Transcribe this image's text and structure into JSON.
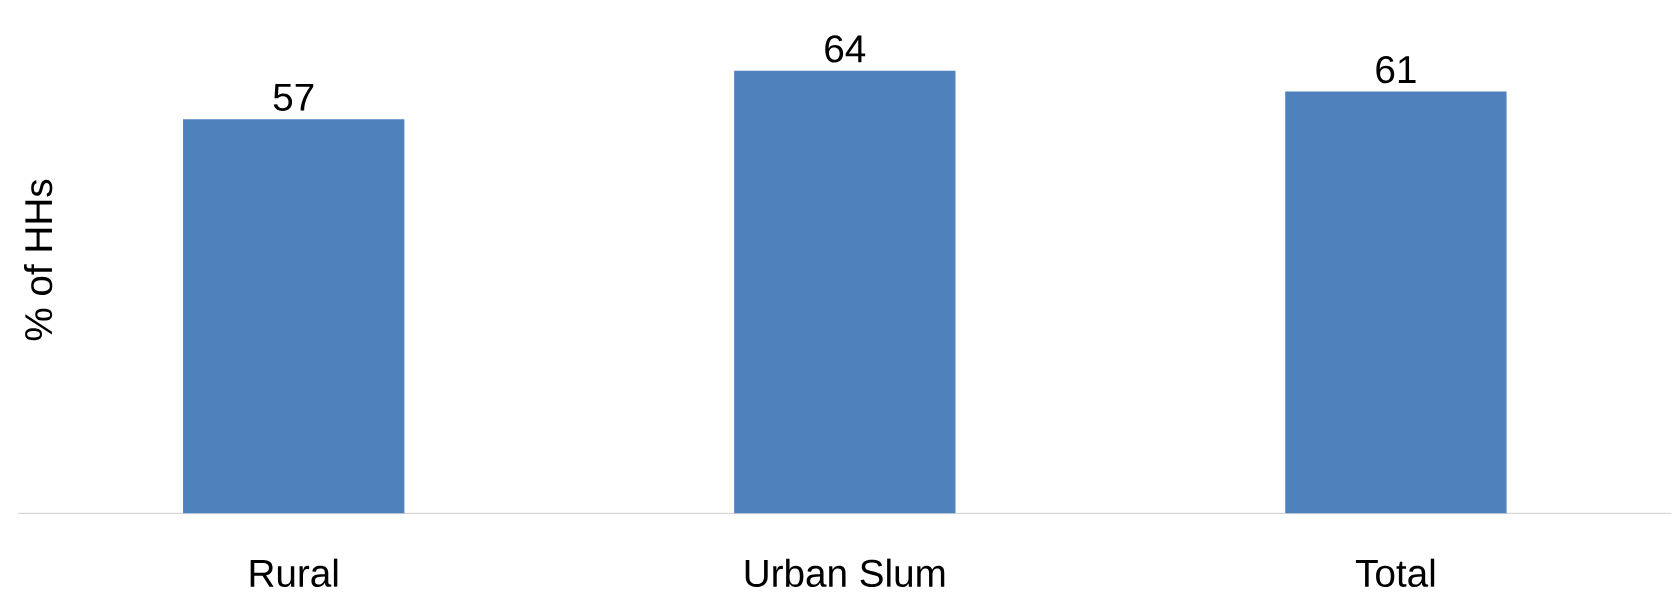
{
  "chart_data": {
    "type": "bar",
    "ylabel": "% of HHs",
    "categories": [
      "Rural",
      "Urban Slum",
      "Total"
    ],
    "values": [
      57,
      64,
      61
    ],
    "color": "#4f81bd",
    "data_labels": true
  }
}
